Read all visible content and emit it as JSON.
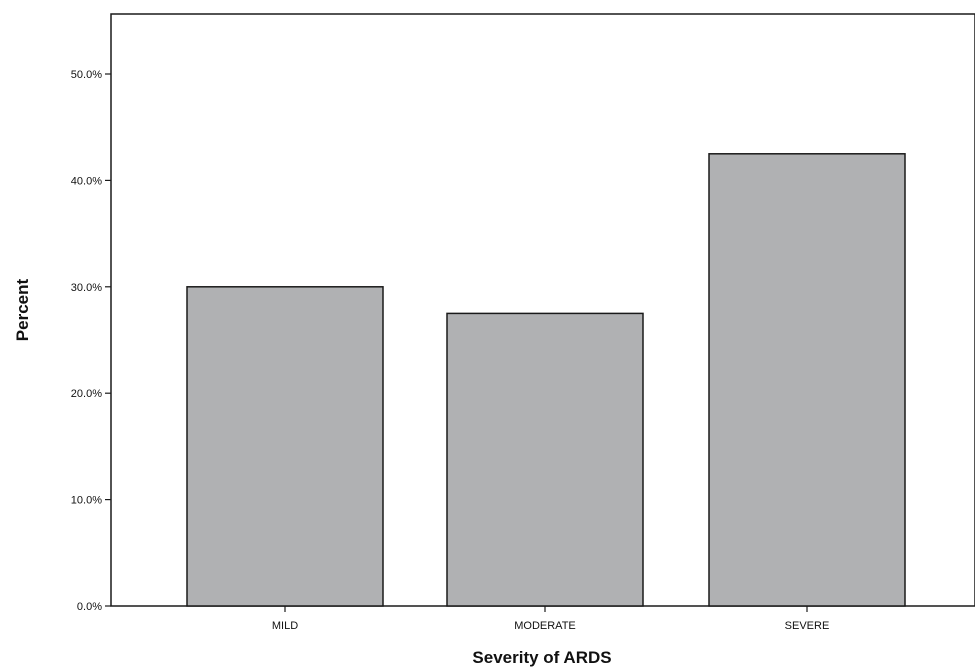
{
  "chart_data": {
    "type": "bar",
    "title": "",
    "xlabel": "Severity of ARDS",
    "ylabel": "Percent",
    "categories": [
      "MILD",
      "MODERATE",
      "SEVERE"
    ],
    "values": [
      30.0,
      27.5,
      42.5
    ],
    "ylim": [
      0,
      55
    ],
    "yticks": [
      0,
      10,
      20,
      30,
      40,
      50
    ],
    "ytick_labels": [
      "0.0%",
      "10.0%",
      "20.0%",
      "30.0%",
      "40.0%",
      "50.0%"
    ],
    "grid": false,
    "legend": "none",
    "colors": {
      "bar_fill": "#b0b1b3",
      "bar_stroke": "#1a1a1a",
      "axis": "#1a1a1a"
    }
  }
}
